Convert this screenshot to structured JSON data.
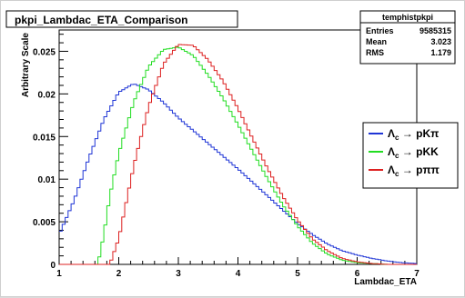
{
  "chart_data": {
    "type": "line",
    "title": "pkpi_Lambdac_ETA_Comparison",
    "xlabel": "Lambdac_ETA",
    "ylabel": "Arbitrary Scale",
    "xlim": [
      1,
      7
    ],
    "ylim": [
      0,
      0.0275
    ],
    "x_ticks": [
      "1",
      "2",
      "3",
      "4",
      "5",
      "6",
      "7"
    ],
    "y_ticks": [
      "0",
      "0.005",
      "0.01",
      "0.015",
      "0.02",
      "0.025"
    ],
    "grid": false,
    "legend_position": "right",
    "series": [
      {
        "name": "Λc → pKπ",
        "legend": {
          "main": "Λ",
          "sub": "c",
          "arrow": " → ",
          "rest": "pKπ"
        },
        "color": "#1f35d6",
        "x": [
          1.0,
          1.25,
          1.5,
          1.75,
          2.0,
          2.25,
          2.5,
          2.75,
          3.0,
          3.25,
          3.5,
          3.75,
          4.0,
          4.25,
          4.5,
          4.75,
          5.0,
          5.25,
          5.5,
          5.75,
          6.0,
          6.25,
          6.5,
          6.75,
          7.0
        ],
        "y": [
          0.0035,
          0.0075,
          0.0125,
          0.017,
          0.0202,
          0.0212,
          0.0205,
          0.019,
          0.0172,
          0.0157,
          0.0142,
          0.0127,
          0.0112,
          0.0096,
          0.008,
          0.0064,
          0.0048,
          0.0035,
          0.0024,
          0.0016,
          0.0011,
          0.0007,
          0.0004,
          0.0002,
          0.0001
        ]
      },
      {
        "name": "Λc → pKK",
        "legend": {
          "main": "Λ",
          "sub": "c",
          "arrow": " → ",
          "rest": "pKK"
        },
        "color": "#22dd22",
        "x": [
          1.65,
          1.75,
          1.85,
          2.0,
          2.25,
          2.5,
          2.75,
          3.0,
          3.25,
          3.5,
          3.75,
          4.0,
          4.25,
          4.5,
          4.75,
          5.0,
          5.25,
          5.5,
          5.75,
          6.0,
          6.25,
          6.5
        ],
        "y": [
          0.0,
          0.0035,
          0.008,
          0.013,
          0.019,
          0.0232,
          0.0252,
          0.0255,
          0.0245,
          0.0222,
          0.0195,
          0.0164,
          0.0132,
          0.01,
          0.007,
          0.0045,
          0.0025,
          0.0012,
          0.0005,
          0.0002,
          0.0001,
          0.0
        ]
      },
      {
        "name": "Λc → pππ",
        "legend": {
          "main": "Λ",
          "sub": "c",
          "arrow": " → ",
          "rest": "pππ"
        },
        "color": "#dd2020",
        "x": [
          1.85,
          2.0,
          2.25,
          2.5,
          2.75,
          3.0,
          3.25,
          3.5,
          3.75,
          4.0,
          4.25,
          4.5,
          4.75,
          5.0,
          5.25,
          5.5,
          5.75,
          6.0,
          6.25,
          6.5
        ],
        "y": [
          0.0,
          0.003,
          0.0115,
          0.0185,
          0.0235,
          0.0258,
          0.0257,
          0.024,
          0.0215,
          0.0183,
          0.0147,
          0.0112,
          0.008,
          0.0052,
          0.003,
          0.0016,
          0.0007,
          0.0003,
          0.0001,
          0.0
        ]
      }
    ],
    "stats": {
      "title": "temphistpkpi",
      "rows": [
        {
          "label": "Entries",
          "value": "9585315"
        },
        {
          "label": "Mean",
          "value": "3.023"
        },
        {
          "label": "RMS",
          "value": "1.179"
        }
      ]
    }
  }
}
